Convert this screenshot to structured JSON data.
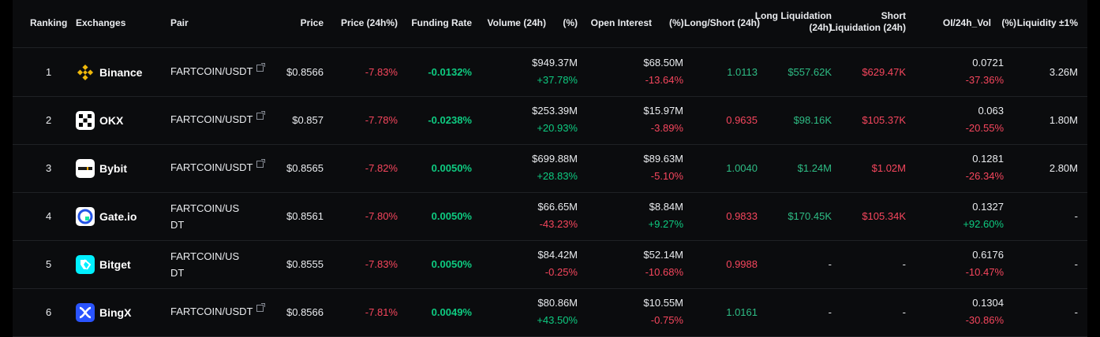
{
  "colors": {
    "positive": "#0ecb81",
    "negative": "#f6465d",
    "neutral_positive": "#2ebd85",
    "text": "#eaecef",
    "row_border": "#1f2125"
  },
  "headers": {
    "ranking": "Ranking",
    "exchanges": "Exchanges",
    "pair": "Pair",
    "price": "Price",
    "price_change": "Price (24h%)",
    "funding_rate": "Funding Rate",
    "volume": "Volume (24h)",
    "volume_pct": "(%)",
    "open_interest": "Open Interest",
    "oi_pct": "(%)",
    "long_short": "Long/Short (24h)",
    "long_liq_line1": "Long Liquidation",
    "long_liq_line2": "(24h)",
    "short_liq_line1": "Short",
    "short_liq_line2": "Liquidation (24h)",
    "oi_vol": "OI/24h_Vol",
    "oi_vol_pct": "(%)",
    "liquidity": "Liquidity ±1%"
  },
  "rows": [
    {
      "rank": "1",
      "exchange": "Binance",
      "icon": "binance-icon",
      "pair": "FARTCOIN/USDT",
      "price": "$0.8566",
      "price_change": "-7.83%",
      "funding": "-0.0132%",
      "volume": "$949.37M",
      "volume_pct": "+37.78%",
      "oi": "$68.50M",
      "oi_pct": "-13.64%",
      "ls": "1.0113",
      "long_liq": "$557.62K",
      "short_liq": "$629.47K",
      "oi_vol": "0.0721",
      "oi_vol_pct": "-37.36%",
      "liquidity": "3.26M"
    },
    {
      "rank": "2",
      "exchange": "OKX",
      "icon": "okx-icon",
      "pair": "FARTCOIN/USDT",
      "price": "$0.857",
      "price_change": "-7.78%",
      "funding": "-0.0238%",
      "volume": "$253.39M",
      "volume_pct": "+20.93%",
      "oi": "$15.97M",
      "oi_pct": "-3.89%",
      "ls": "0.9635",
      "long_liq": "$98.16K",
      "short_liq": "$105.37K",
      "oi_vol": "0.063",
      "oi_vol_pct": "-20.55%",
      "liquidity": "1.80M"
    },
    {
      "rank": "3",
      "exchange": "Bybit",
      "icon": "bybit-icon",
      "pair": "FARTCOIN/USDT",
      "price": "$0.8565",
      "price_change": "-7.82%",
      "funding": "0.0050%",
      "volume": "$699.88M",
      "volume_pct": "+28.83%",
      "oi": "$89.63M",
      "oi_pct": "-5.10%",
      "ls": "1.0040",
      "long_liq": "$1.24M",
      "short_liq": "$1.02M",
      "oi_vol": "0.1281",
      "oi_vol_pct": "-26.34%",
      "liquidity": "2.80M"
    },
    {
      "rank": "4",
      "exchange": "Gate.io",
      "icon": "gateio-icon",
      "pair": "FARTCOIN/USDT",
      "price": "$0.8561",
      "price_change": "-7.80%",
      "funding": "0.0050%",
      "volume": "$66.65M",
      "volume_pct": "-43.23%",
      "oi": "$8.84M",
      "oi_pct": "+9.27%",
      "ls": "0.9833",
      "long_liq": "$170.45K",
      "short_liq": "$105.34K",
      "oi_vol": "0.1327",
      "oi_vol_pct": "+92.60%",
      "liquidity": "-"
    },
    {
      "rank": "5",
      "exchange": "Bitget",
      "icon": "bitget-icon",
      "pair": "FARTCOIN/USDT",
      "price": "$0.8555",
      "price_change": "-7.83%",
      "funding": "0.0050%",
      "volume": "$84.42M",
      "volume_pct": "-0.25%",
      "oi": "$52.14M",
      "oi_pct": "-10.68%",
      "ls": "0.9988",
      "long_liq": "-",
      "short_liq": "-",
      "oi_vol": "0.6176",
      "oi_vol_pct": "-10.47%",
      "liquidity": "-"
    },
    {
      "rank": "6",
      "exchange": "BingX",
      "icon": "bingx-icon",
      "pair": "FARTCOIN/USDT",
      "price": "$0.8566",
      "price_change": "-7.81%",
      "funding": "0.0049%",
      "volume": "$80.86M",
      "volume_pct": "+43.50%",
      "oi": "$10.55M",
      "oi_pct": "-0.75%",
      "ls": "1.0161",
      "long_liq": "-",
      "short_liq": "-",
      "oi_vol": "0.1304",
      "oi_vol_pct": "-30.86%",
      "liquidity": "-"
    }
  ]
}
